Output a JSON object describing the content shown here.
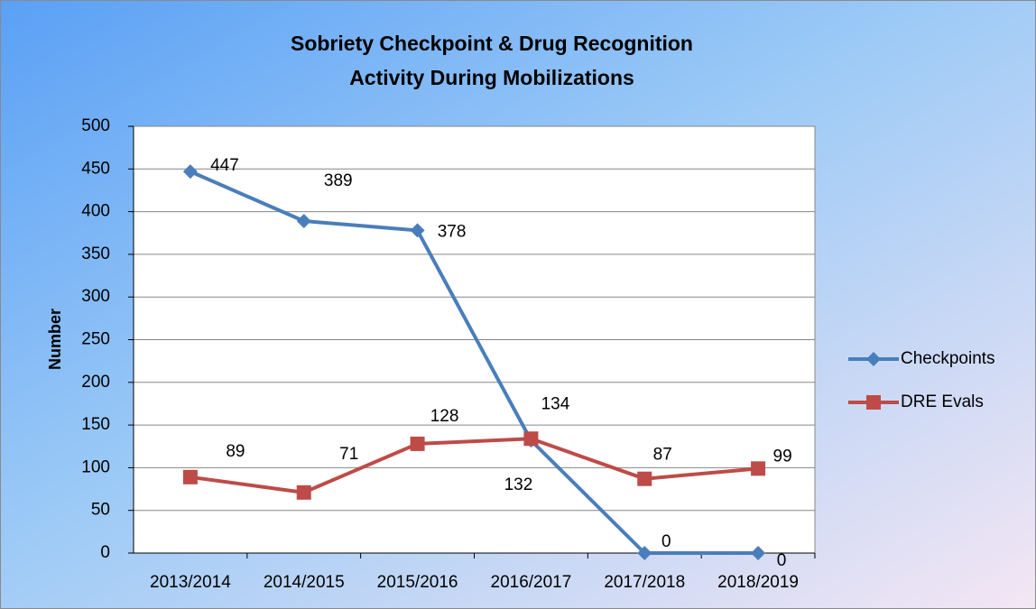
{
  "chart_data": {
    "type": "line",
    "title": [
      "Sobriety Checkpoint & Drug Recognition",
      "Activity During Mobilizations"
    ],
    "y_label": "Number",
    "categories": [
      "2013/2014",
      "2014/2015",
      "2015/2016",
      "2016/2017",
      "2017/2018",
      "2018/2019"
    ],
    "series": [
      {
        "name": "Checkpoints",
        "color": "#4a7ebb",
        "marker": "diamond",
        "values": [
          447,
          389,
          378,
          132,
          0,
          0
        ]
      },
      {
        "name": "DRE Evals",
        "color": "#be4b48",
        "marker": "square",
        "values": [
          89,
          71,
          128,
          134,
          87,
          99
        ]
      }
    ],
    "ylim": [
      0,
      500
    ],
    "yticks": [
      0,
      50,
      100,
      150,
      200,
      250,
      300,
      350,
      400,
      450,
      500
    ],
    "grid": true,
    "legend": "right"
  }
}
